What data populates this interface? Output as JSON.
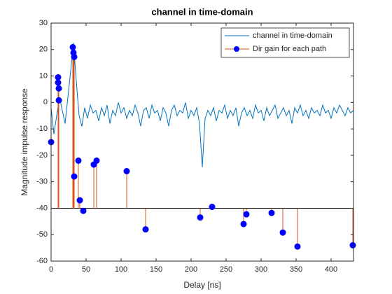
{
  "chart_data": {
    "type": "combo",
    "title": "channel in time-domain",
    "xlabel": "Delay [ns]",
    "ylabel": "Magnitude impulse response",
    "xlim": [
      0,
      432
    ],
    "ylim": [
      -60,
      30
    ],
    "xticks": [
      0,
      50,
      100,
      150,
      200,
      250,
      300,
      350,
      400
    ],
    "yticks": [
      -60,
      -50,
      -40,
      -30,
      -20,
      -10,
      0,
      10,
      20,
      30
    ],
    "legend": "northeast",
    "series": [
      {
        "name": "channel in time-domain",
        "type": "line",
        "color": "#0072bd",
        "x": [
          0,
          4,
          8,
          12,
          16,
          20,
          24,
          28,
          32,
          36,
          40,
          44,
          48,
          52,
          56,
          60,
          64,
          68,
          72,
          76,
          80,
          84,
          88,
          92,
          96,
          100,
          104,
          108,
          112,
          116,
          120,
          124,
          128,
          132,
          136,
          140,
          144,
          148,
          152,
          156,
          160,
          164,
          168,
          172,
          176,
          180,
          184,
          188,
          192,
          196,
          200,
          204,
          208,
          212,
          216,
          220,
          224,
          228,
          232,
          236,
          240,
          244,
          248,
          252,
          256,
          260,
          264,
          268,
          272,
          276,
          280,
          284,
          288,
          292,
          296,
          300,
          304,
          308,
          312,
          316,
          320,
          324,
          328,
          332,
          336,
          340,
          344,
          348,
          352,
          356,
          360,
          364,
          368,
          372,
          376,
          380,
          384,
          388,
          392,
          396,
          400,
          404,
          408,
          412,
          416,
          420,
          424,
          428,
          432
        ],
        "values": [
          -2,
          -12,
          -5,
          2,
          -3,
          -8,
          2,
          12,
          22.5,
          8,
          -5,
          -9,
          -2,
          -6,
          -1,
          -4,
          -3,
          -7,
          -2,
          -5,
          -1,
          -8,
          -3,
          -5,
          0,
          -4,
          -2,
          -6,
          -3,
          -5,
          -1,
          -4,
          -9,
          -3,
          -2,
          -6,
          -1,
          -4,
          -3,
          -7,
          -2,
          -4,
          -9,
          -3,
          -1,
          -5,
          -3,
          -4,
          0,
          -6,
          -3,
          -5,
          -2,
          -8,
          -24.5,
          -6,
          -3,
          -5,
          -2,
          -7,
          -3,
          -4,
          -1,
          -6,
          -3,
          -5,
          -2,
          -9,
          -4,
          -2,
          -5,
          -3,
          -6,
          -1,
          -4,
          -3,
          -7,
          -2,
          -5,
          -3,
          -1,
          -6,
          -4,
          -2,
          -5,
          -3,
          -8,
          -2,
          -4,
          -1,
          -5,
          -3,
          -6,
          -2,
          -4,
          -3,
          -5,
          -1,
          -4,
          -3,
          -6,
          -2,
          -4,
          -1,
          -3,
          -5,
          -2,
          -4,
          -3
        ]
      },
      {
        "name": "Dir gain for each path",
        "type": "stem",
        "color": "#d95319",
        "marker_color": "#0000ff",
        "baseline": -40,
        "x": [
          0,
          10,
          10,
          11,
          11,
          31,
          32,
          33,
          33,
          39,
          41,
          46,
          61,
          65,
          108,
          135,
          213,
          230,
          275,
          279,
          315,
          331,
          352,
          431
        ],
        "values": [
          -15,
          9.5,
          7.5,
          5.3,
          0.8,
          20.9,
          18.8,
          17.2,
          -28,
          -22,
          -37,
          -41,
          -23.5,
          -22,
          -26,
          -48,
          -43.5,
          -39.5,
          -46,
          -42.3,
          -41.8,
          -49.2,
          -54.5,
          -54
        ]
      }
    ]
  }
}
